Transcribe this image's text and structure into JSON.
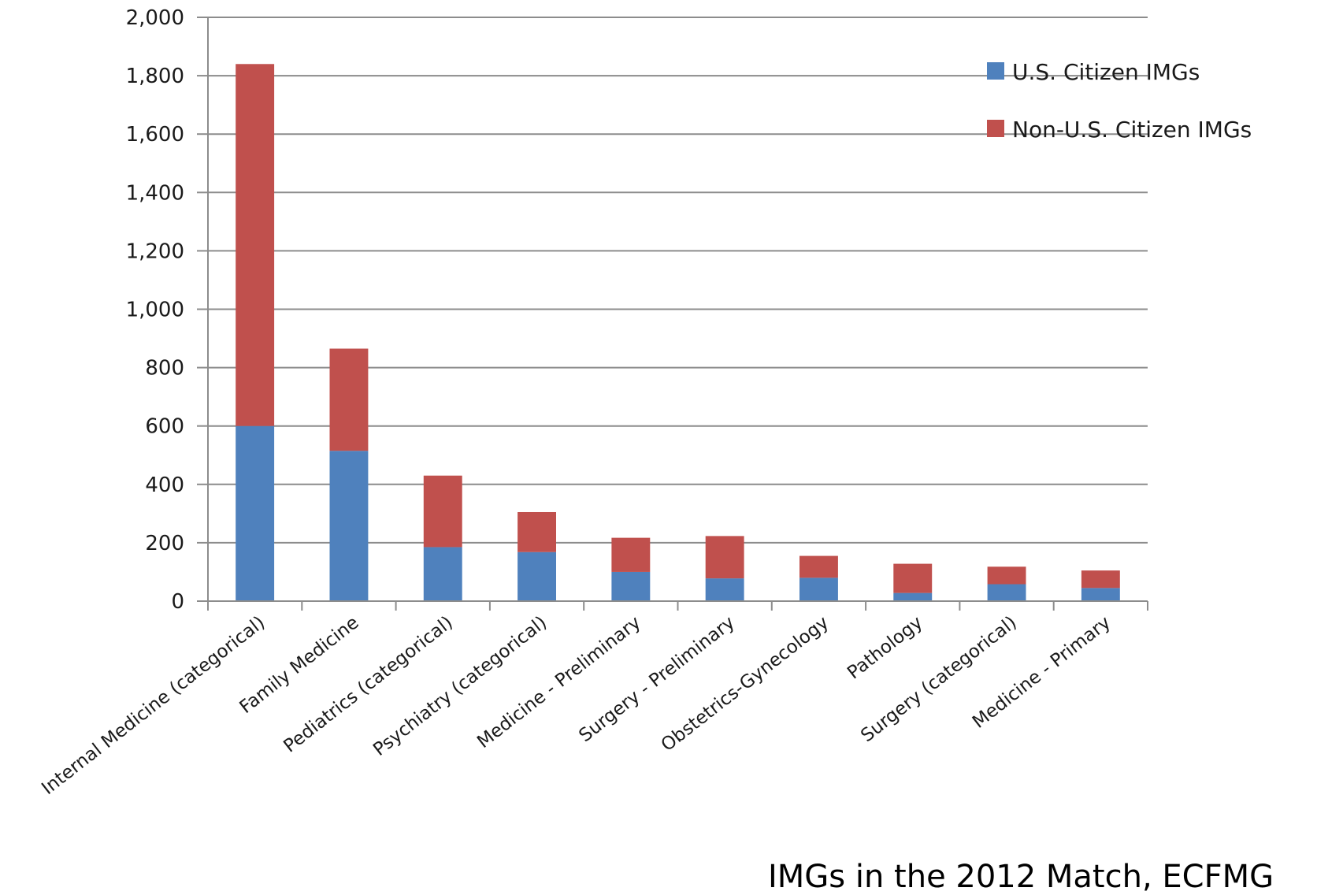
{
  "chart_data": {
    "type": "bar",
    "stacked": true,
    "categories": [
      "Internal Medicine (categorical)",
      "Family Medicine",
      "Pediatrics (categorical)",
      "Psychiatry (categorical)",
      "Medicine - Preliminary",
      "Surgery - Preliminary",
      "Obstetrics-Gynecology",
      "Pathology",
      "Surgery (categorical)",
      "Medicine - Primary"
    ],
    "series": [
      {
        "name": "U.S. Citizen IMGs",
        "color": "#4F81BD",
        "values": [
          600,
          515,
          185,
          168,
          100,
          78,
          80,
          28,
          58,
          45
        ]
      },
      {
        "name": "Non-U.S. Citizen IMGs",
        "color": "#C0504D",
        "values": [
          1240,
          350,
          245,
          137,
          117,
          145,
          75,
          100,
          60,
          60
        ]
      }
    ],
    "yticks": [
      "0",
      "200",
      "400",
      "600",
      "800",
      "1,000",
      "1,200",
      "1,400",
      "1,600",
      "1,800",
      "2,000"
    ],
    "ylim": [
      0,
      2000
    ],
    "grid": true,
    "legend_position": "top-right",
    "title": "",
    "xlabel": "",
    "ylabel": ""
  },
  "caption": "IMGs in the 2012 Match, ECFMG"
}
